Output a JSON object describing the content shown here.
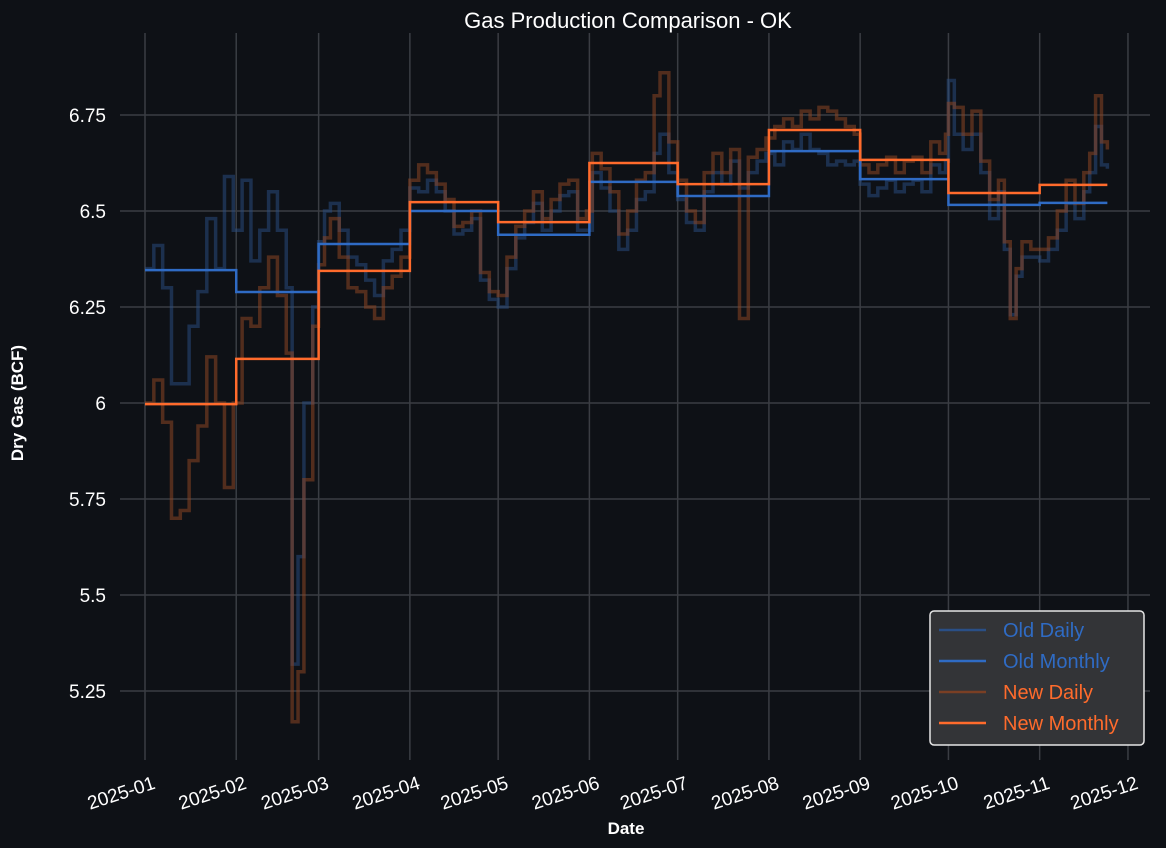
{
  "chart_data": {
    "type": "line",
    "title": "Gas Production Comparison - OK",
    "xlabel": "Date",
    "ylabel": "Dry Gas (BCF)",
    "ylim": [
      5.07,
      6.96
    ],
    "grid": true,
    "legend_position": "bottom-right",
    "x_start_date": "2025-01-01",
    "x_ticks": [
      {
        "label": "2025-01",
        "day": 0
      },
      {
        "label": "2025-02",
        "day": 31
      },
      {
        "label": "2025-03",
        "day": 59
      },
      {
        "label": "2025-04",
        "day": 90
      },
      {
        "label": "2025-05",
        "day": 120
      },
      {
        "label": "2025-06",
        "day": 151
      },
      {
        "label": "2025-07",
        "day": 181
      },
      {
        "label": "2025-08",
        "day": 212
      },
      {
        "label": "2025-09",
        "day": 243
      },
      {
        "label": "2025-10",
        "day": 273
      },
      {
        "label": "2025-11",
        "day": 304
      },
      {
        "label": "2025-12",
        "day": 334
      }
    ],
    "y_ticks": [
      {
        "label": "5.25",
        "value": 5.25
      },
      {
        "label": "5.5",
        "value": 5.5
      },
      {
        "label": "5.75",
        "value": 5.75
      },
      {
        "label": "6",
        "value": 6.0
      },
      {
        "label": "6.25",
        "value": 6.25
      },
      {
        "label": "6.5",
        "value": 6.5
      },
      {
        "label": "6.75",
        "value": 6.75
      }
    ],
    "legend": [
      {
        "label": "Old Daily",
        "color": "#2a4f86",
        "text_color": "#2f6bc4"
      },
      {
        "label": "Old Monthly",
        "color": "#2f6bc4",
        "text_color": "#2f6bc4"
      },
      {
        "label": "New Daily",
        "color": "#7a3f24",
        "text_color": "#ff6b2c"
      },
      {
        "label": "New Monthly",
        "color": "#ff6b2c",
        "text_color": "#ff6b2c"
      }
    ],
    "monthly": {
      "end_day": 327,
      "start_days": [
        0,
        31,
        59,
        90,
        120,
        151,
        181,
        212,
        243,
        273,
        304
      ],
      "old": [
        6.346,
        6.289,
        6.414,
        6.5,
        6.438,
        6.576,
        6.539,
        6.656,
        6.583,
        6.516,
        6.521
      ],
      "new": [
        5.997,
        6.115,
        6.344,
        6.523,
        6.471,
        6.625,
        6.57,
        6.711,
        6.633,
        6.547,
        6.568
      ]
    },
    "daily_columns": [
      "day",
      "old",
      "new"
    ],
    "daily": [
      [
        0,
        6.35,
        6.0
      ],
      [
        3,
        6.41,
        6.06
      ],
      [
        6,
        6.3,
        5.95
      ],
      [
        9,
        6.05,
        5.7
      ],
      [
        12,
        6.05,
        5.72
      ],
      [
        15,
        6.2,
        5.85
      ],
      [
        18,
        6.29,
        5.94
      ],
      [
        21,
        6.48,
        6.12
      ],
      [
        24,
        6.35,
        6.0
      ],
      [
        27,
        6.59,
        5.78
      ],
      [
        30,
        6.45,
        6.0
      ],
      [
        33,
        6.58,
        6.22
      ],
      [
        36,
        6.37,
        6.2
      ],
      [
        39,
        6.45,
        6.3
      ],
      [
        42,
        6.55,
        6.38
      ],
      [
        45,
        6.45,
        6.28
      ],
      [
        48,
        6.3,
        6.13
      ],
      [
        50,
        5.32,
        5.17
      ],
      [
        52,
        5.6,
        5.3
      ],
      [
        54,
        6.0,
        5.8
      ],
      [
        57,
        6.25,
        6.2
      ],
      [
        59,
        6.42,
        6.36
      ],
      [
        61,
        6.5,
        6.43
      ],
      [
        63,
        6.52,
        6.48
      ],
      [
        66,
        6.45,
        6.38
      ],
      [
        69,
        6.38,
        6.3
      ],
      [
        72,
        6.36,
        6.29
      ],
      [
        75,
        6.32,
        6.25
      ],
      [
        78,
        6.28,
        6.22
      ],
      [
        81,
        6.37,
        6.3
      ],
      [
        84,
        6.4,
        6.33
      ],
      [
        87,
        6.45,
        6.38
      ],
      [
        90,
        6.56,
        6.58
      ],
      [
        93,
        6.55,
        6.62
      ],
      [
        96,
        6.58,
        6.6
      ],
      [
        99,
        6.55,
        6.57
      ],
      [
        102,
        6.5,
        6.53
      ],
      [
        105,
        6.44,
        6.46
      ],
      [
        108,
        6.45,
        6.47
      ],
      [
        111,
        6.48,
        6.5
      ],
      [
        114,
        6.32,
        6.34
      ],
      [
        117,
        6.27,
        6.29
      ],
      [
        120,
        6.25,
        6.28
      ],
      [
        123,
        6.35,
        6.38
      ],
      [
        126,
        6.43,
        6.46
      ],
      [
        129,
        6.47,
        6.5
      ],
      [
        132,
        6.52,
        6.55
      ],
      [
        135,
        6.45,
        6.48
      ],
      [
        138,
        6.5,
        6.53
      ],
      [
        141,
        6.54,
        6.57
      ],
      [
        144,
        6.55,
        6.58
      ],
      [
        147,
        6.45,
        6.48
      ],
      [
        150,
        6.45,
        6.5
      ],
      [
        152,
        6.6,
        6.65
      ],
      [
        155,
        6.56,
        6.61
      ],
      [
        158,
        6.5,
        6.55
      ],
      [
        161,
        6.4,
        6.44
      ],
      [
        164,
        6.45,
        6.5
      ],
      [
        167,
        6.53,
        6.58
      ],
      [
        170,
        6.55,
        6.6
      ],
      [
        173,
        6.65,
        6.8
      ],
      [
        175,
        6.7,
        6.86
      ],
      [
        178,
        6.6,
        6.68
      ],
      [
        181,
        6.53,
        6.58
      ],
      [
        184,
        6.47,
        6.5
      ],
      [
        187,
        6.45,
        6.47
      ],
      [
        190,
        6.55,
        6.6
      ],
      [
        193,
        6.6,
        6.65
      ],
      [
        196,
        6.57,
        6.6
      ],
      [
        199,
        6.63,
        6.66
      ],
      [
        202,
        6.56,
        6.22
      ],
      [
        205,
        6.6,
        6.64
      ],
      [
        208,
        6.63,
        6.66
      ],
      [
        211,
        6.65,
        6.69
      ],
      [
        214,
        6.62,
        6.72
      ],
      [
        217,
        6.68,
        6.74
      ],
      [
        220,
        6.66,
        6.72
      ],
      [
        223,
        6.7,
        6.76
      ],
      [
        226,
        6.66,
        6.74
      ],
      [
        229,
        6.65,
        6.77
      ],
      [
        232,
        6.62,
        6.76
      ],
      [
        235,
        6.63,
        6.74
      ],
      [
        238,
        6.62,
        6.72
      ],
      [
        241,
        6.63,
        6.7
      ],
      [
        243,
        6.57,
        6.62
      ],
      [
        246,
        6.54,
        6.6
      ],
      [
        249,
        6.56,
        6.62
      ],
      [
        252,
        6.58,
        6.64
      ],
      [
        255,
        6.55,
        6.6
      ],
      [
        258,
        6.57,
        6.63
      ],
      [
        261,
        6.58,
        6.64
      ],
      [
        264,
        6.55,
        6.6
      ],
      [
        267,
        6.62,
        6.68
      ],
      [
        270,
        6.6,
        6.65
      ],
      [
        272,
        6.63,
        6.7
      ],
      [
        273,
        6.84,
        6.78
      ],
      [
        275,
        6.7,
        6.77
      ],
      [
        278,
        6.66,
        6.7
      ],
      [
        281,
        6.7,
        6.76
      ],
      [
        284,
        6.6,
        6.63
      ],
      [
        287,
        6.48,
        6.53
      ],
      [
        290,
        6.55,
        6.58
      ],
      [
        292,
        6.4,
        6.42
      ],
      [
        294,
        6.23,
        6.22
      ],
      [
        296,
        6.33,
        6.35
      ],
      [
        298,
        6.38,
        6.42
      ],
      [
        301,
        6.38,
        6.4
      ],
      [
        304,
        6.37,
        6.4
      ],
      [
        307,
        6.4,
        6.43
      ],
      [
        310,
        6.45,
        6.5
      ],
      [
        313,
        6.52,
        6.58
      ],
      [
        316,
        6.48,
        6.52
      ],
      [
        319,
        6.55,
        6.6
      ],
      [
        321,
        6.6,
        6.65
      ],
      [
        323,
        6.72,
        6.8
      ],
      [
        325,
        6.62,
        6.68
      ],
      [
        327,
        6.61,
        6.66
      ]
    ]
  }
}
